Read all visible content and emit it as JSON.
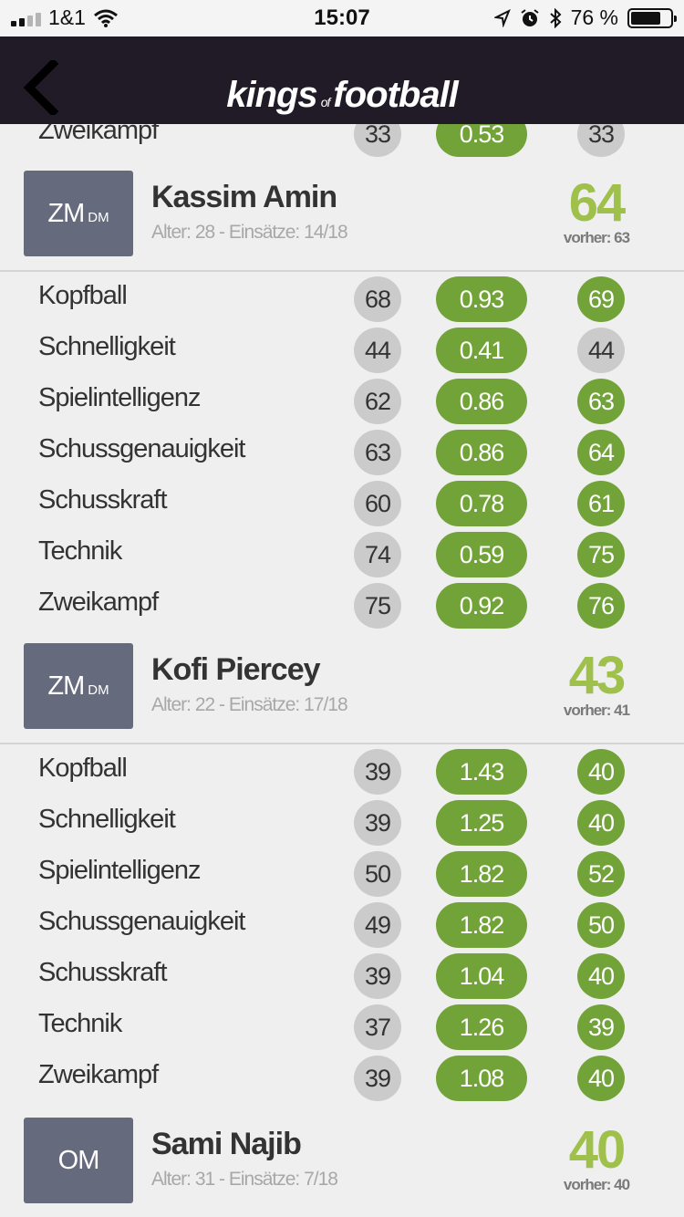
{
  "status_bar": {
    "carrier": "1&1",
    "time": "15:07",
    "battery_text": "76 %",
    "battery_level": 0.76
  },
  "header": {
    "brand_a": "kings",
    "brand_b": "of",
    "brand_c": "football"
  },
  "partial_row": {
    "label": "Zweikampf",
    "old": "33",
    "factor": "0.53",
    "new": "33"
  },
  "players": [
    {
      "position": "ZM",
      "sub_position": "DM",
      "name": "Kassim Amin",
      "meta": "Alter: 28 - Einsätze: 14/18",
      "rating": "64",
      "previous": "vorher: 63",
      "stats": [
        {
          "label": "Kopfball",
          "old": "68",
          "factor": "0.93",
          "new": "69"
        },
        {
          "label": "Schnelligkeit",
          "old": "44",
          "factor": "0.41",
          "new": "44"
        },
        {
          "label": "Spielintelligenz",
          "old": "62",
          "factor": "0.86",
          "new": "63"
        },
        {
          "label": "Schussgenauigkeit",
          "old": "63",
          "factor": "0.86",
          "new": "64"
        },
        {
          "label": "Schusskraft",
          "old": "60",
          "factor": "0.78",
          "new": "61"
        },
        {
          "label": "Technik",
          "old": "74",
          "factor": "0.59",
          "new": "75"
        },
        {
          "label": "Zweikampf",
          "old": "75",
          "factor": "0.92",
          "new": "76"
        }
      ]
    },
    {
      "position": "ZM",
      "sub_position": "DM",
      "name": "Kofi Piercey",
      "meta": "Alter: 22 - Einsätze: 17/18",
      "rating": "43",
      "previous": "vorher: 41",
      "stats": [
        {
          "label": "Kopfball",
          "old": "39",
          "factor": "1.43",
          "new": "40"
        },
        {
          "label": "Schnelligkeit",
          "old": "39",
          "factor": "1.25",
          "new": "40"
        },
        {
          "label": "Spielintelligenz",
          "old": "50",
          "factor": "1.82",
          "new": "52"
        },
        {
          "label": "Schussgenauigkeit",
          "old": "49",
          "factor": "1.82",
          "new": "50"
        },
        {
          "label": "Schusskraft",
          "old": "39",
          "factor": "1.04",
          "new": "40"
        },
        {
          "label": "Technik",
          "old": "37",
          "factor": "1.26",
          "new": "39"
        },
        {
          "label": "Zweikampf",
          "old": "39",
          "factor": "1.08",
          "new": "40"
        }
      ]
    },
    {
      "position": "OM",
      "sub_position": "",
      "name": "Sami Najib",
      "meta": "Alter: 31 - Einsätze: 7/18",
      "rating": "40",
      "previous": "vorher: 40",
      "stats": []
    }
  ]
}
